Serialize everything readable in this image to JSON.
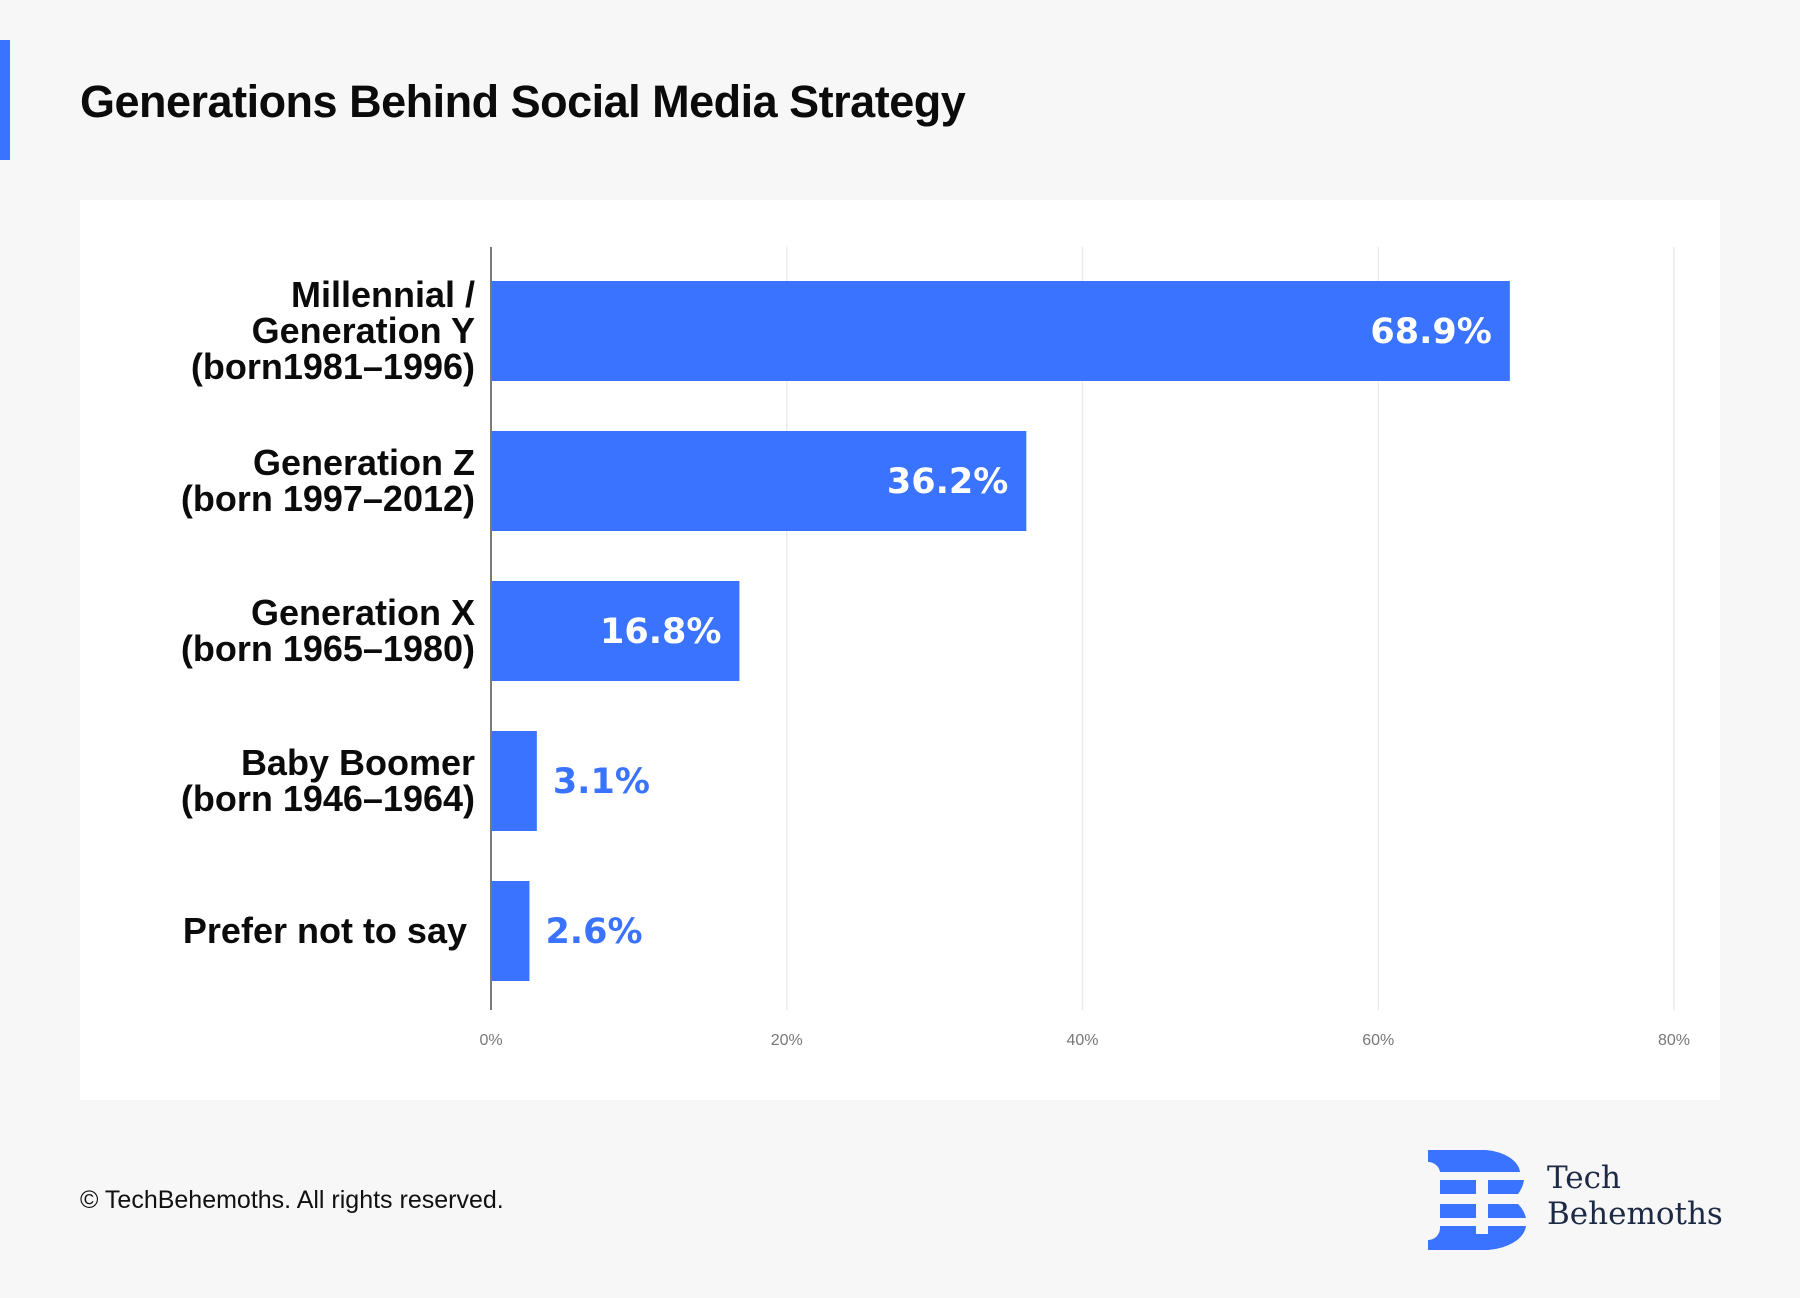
{
  "header": {
    "title": "Generations Behind Social Media Strategy"
  },
  "colors": {
    "accent": "#3a73ff",
    "bar": "#3a73ff",
    "label_inside": "#ffffff",
    "label_outside": "#3a73ff",
    "background": "#f7f7f7",
    "card": "#ffffff"
  },
  "chart_data": {
    "type": "bar",
    "orientation": "horizontal",
    "title": "Generations Behind Social Media Strategy",
    "xlabel": "",
    "ylabel": "",
    "categories": [
      [
        "Millennial /",
        "Generation Y",
        "(born1981–1996)"
      ],
      [
        "Generation Z",
        "(born 1997–2012)"
      ],
      [
        "Generation X",
        "(born 1965–1980)"
      ],
      [
        "Baby Boomer",
        "(born 1946–1964)"
      ],
      [
        "Prefer not to say"
      ]
    ],
    "values": [
      68.9,
      36.2,
      16.8,
      3.1,
      2.6
    ],
    "value_labels": [
      "68.9%",
      "36.2%",
      "16.8%",
      "3.1%",
      "2.6%"
    ],
    "xlim": [
      0,
      80
    ],
    "xticks": [
      0,
      20,
      40,
      60,
      80
    ],
    "xtick_labels": [
      "0%",
      "20%",
      "40%",
      "60%",
      "80%"
    ],
    "grid": "vertical",
    "legend": "none"
  },
  "footer": {
    "copyright": "© TechBehemoths. All rights reserved."
  },
  "logo": {
    "line1": "Tech",
    "line2": "Behemoths"
  }
}
